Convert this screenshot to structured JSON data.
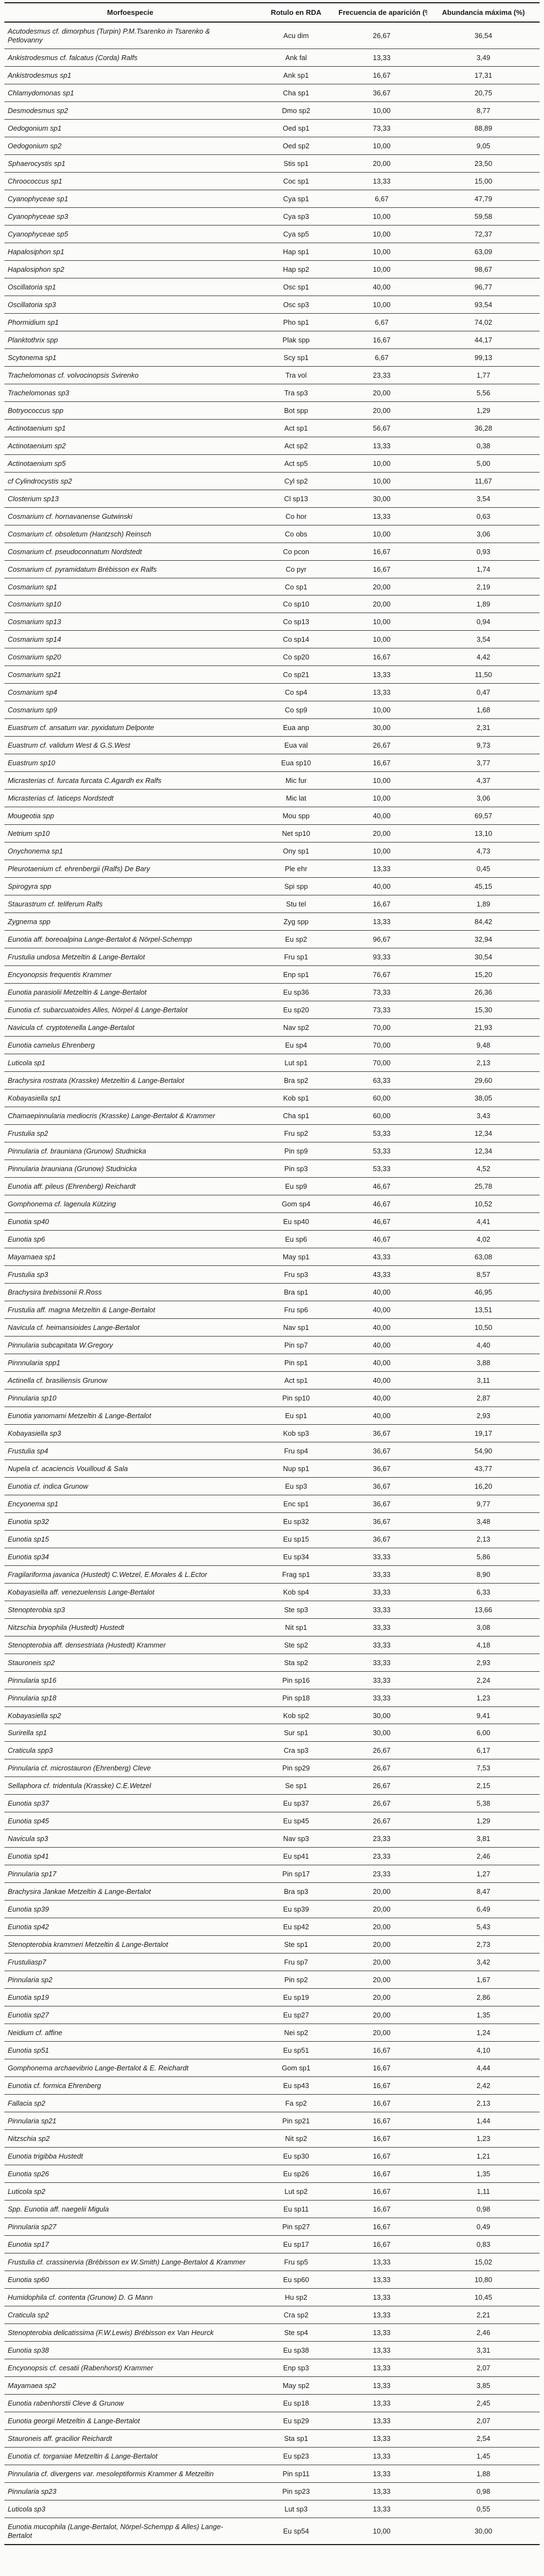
{
  "table": {
    "columns": [
      "Morfoespecie",
      "Rotulo en RDA",
      "Frecuencia de aparición (%)",
      "Abundancia máxima (%)"
    ],
    "rows": [
      [
        "Acutodesmus cf. dimorphus (Turpin) P.M.Tsarenko in Tsarenko & Petlovanny",
        "Acu dim",
        "26,67",
        "36,54"
      ],
      [
        "Ankistrodesmus cf. falcatus (Corda) Ralfs",
        "Ank fal",
        "13,33",
        "3,49"
      ],
      [
        "Ankistrodesmus sp1",
        "Ank sp1",
        "16,67",
        "17,31"
      ],
      [
        "Chlamydomonas sp1",
        "Cha sp1",
        "36,67",
        "20,75"
      ],
      [
        "Desmodesmus sp2",
        "Dmo sp2",
        "10,00",
        "8,77"
      ],
      [
        "Oedogonium sp1",
        "Oed sp1",
        "73,33",
        "88,89"
      ],
      [
        "Oedogonium sp2",
        "Oed sp2",
        "10,00",
        "9,05"
      ],
      [
        "Sphaerocystis sp1",
        "Stis sp1",
        "20,00",
        "23,50"
      ],
      [
        "Chroococcus sp1",
        "Coc sp1",
        "13,33",
        "15,00"
      ],
      [
        "Cyanophyceae sp1",
        "Cya sp1",
        "6,67",
        "47,79"
      ],
      [
        "Cyanophyceae sp3",
        "Cya sp3",
        "10,00",
        "59,58"
      ],
      [
        "Cyanophyceae sp5",
        "Cya sp5",
        "10,00",
        "72,37"
      ],
      [
        "Hapalosiphon sp1",
        "Hap sp1",
        "10,00",
        "63,09"
      ],
      [
        "Hapalosiphon sp2",
        "Hap sp2",
        "10,00",
        "98,67"
      ],
      [
        "Oscillatoria sp1",
        "Osc sp1",
        "40,00",
        "96,77"
      ],
      [
        "Oscillatoria sp3",
        "Osc sp3",
        "10,00",
        "93,54"
      ],
      [
        "Phormidium sp1",
        "Pho sp1",
        "6,67",
        "74,02"
      ],
      [
        "Planktothrix spp",
        "Plak spp",
        "16,67",
        "44,17"
      ],
      [
        "Scytonema sp1",
        "Scy sp1",
        "6,67",
        "99,13"
      ],
      [
        "Trachelomonas cf. volvocinopsis Svirenko",
        "Tra vol",
        "23,33",
        "1,77"
      ],
      [
        "Trachelomonas sp3",
        "Tra sp3",
        "20,00",
        "5,56"
      ],
      [
        "Botryococcus spp",
        "Bot spp",
        "20,00",
        "1,29"
      ],
      [
        "Actinotaenium sp1",
        "Act sp1",
        "56,67",
        "36,28"
      ],
      [
        "Actinotaenium sp2",
        "Act sp2",
        "13,33",
        "0,38"
      ],
      [
        "Actinotaenium sp5",
        "Act sp5",
        "10,00",
        "5,00"
      ],
      [
        "cf Cylindrocystis sp2",
        "Cyl sp2",
        "10,00",
        "11,67"
      ],
      [
        "Closterium sp13",
        "Cl sp13",
        "30,00",
        "3,54"
      ],
      [
        "Cosmarium cf. hornavanense Gutwinski",
        "Co hor",
        "13,33",
        "0,63"
      ],
      [
        "Cosmarium cf. obsoletum (Hantzsch) Reinsch",
        "Co obs",
        "10,00",
        "3,06"
      ],
      [
        "Cosmarium cf. pseudoconnatum Nordstedt",
        "Co pcon",
        "16,67",
        "0,93"
      ],
      [
        "Cosmarium cf. pyramidatum Brébisson ex Ralfs",
        "Co pyr",
        "16,67",
        "1,74"
      ],
      [
        "Cosmarium sp1",
        "Co sp1",
        "20,00",
        "2,19"
      ],
      [
        "Cosmarium sp10",
        "Co sp10",
        "20,00",
        "1,89"
      ],
      [
        "Cosmarium sp13",
        "Co sp13",
        "10,00",
        "0,94"
      ],
      [
        "Cosmarium sp14",
        "Co sp14",
        "10,00",
        "3,54"
      ],
      [
        "Cosmarium sp20",
        "Co sp20",
        "16,67",
        "4,42"
      ],
      [
        "Cosmarium sp21",
        "Co sp21",
        "13,33",
        "11,50"
      ],
      [
        "Cosmarium sp4",
        "Co sp4",
        "13,33",
        "0,47"
      ],
      [
        "Cosmarium sp9",
        "Co sp9",
        "10,00",
        "1,68"
      ],
      [
        "Euastrum cf. ansatum var. pyxidatum Delponte",
        "Eua anp",
        "30,00",
        "2,31"
      ],
      [
        "Euastrum cf. validum West & G.S.West",
        "Eua val",
        "26,67",
        "9,73"
      ],
      [
        "Euastrum sp10",
        "Eua sp10",
        "16,67",
        "3,77"
      ],
      [
        "Micrasterias cf. furcata furcata C.Agardh ex Ralfs",
        "Mic fur",
        "10,00",
        "4,37"
      ],
      [
        "Micrasterias cf. laticeps Nordstedt",
        "Mic lat",
        "10,00",
        "3,06"
      ],
      [
        "Mougeotia spp",
        "Mou spp",
        "40,00",
        "69,57"
      ],
      [
        "Netrium sp10",
        "Net sp10",
        "20,00",
        "13,10"
      ],
      [
        "Onychonema sp1",
        "Ony sp1",
        "10,00",
        "4,73"
      ],
      [
        "Pleurotaenium cf. ehrenbergii (Ralfs) De Bary",
        "Ple ehr",
        "13,33",
        "0,45"
      ],
      [
        "Spirogyra spp",
        "Spi spp",
        "40,00",
        "45,15"
      ],
      [
        "Staurastrum cf. teliferum Ralfs",
        "Stu tel",
        "16,67",
        "1,89"
      ],
      [
        "Zygnema spp",
        "Zyg spp",
        "13,33",
        "84,42"
      ],
      [
        "Eunotia aff. boreoalpina Lange-Bertalot & Nörpel-Schempp",
        "Eu sp2",
        "96,67",
        "32,94"
      ],
      [
        "Frustulia undosa Metzeltin & Lange-Bertalot",
        "Fru sp1",
        "93,33",
        "30,54"
      ],
      [
        "Encyonopsis frequentis Krammer",
        "Enp sp1",
        "76,67",
        "15,20"
      ],
      [
        "Eunotia parasiolii Metzeltin & Lange-Bertalot",
        "Eu sp36",
        "73,33",
        "26,36"
      ],
      [
        "Eunotia cf. subarcuatoides Alles, Nörpel & Lange-Bertalot",
        "Eu sp20",
        "73,33",
        "15,30"
      ],
      [
        "Navicula cf. cryptotenella Lange-Bertalot",
        "Nav sp2",
        "70,00",
        "21,93"
      ],
      [
        "Eunotia camelus Ehrenberg",
        "Eu sp4",
        "70,00",
        "9,48"
      ],
      [
        "Luticola sp1",
        "Lut sp1",
        "70,00",
        "2,13"
      ],
      [
        "Brachysira rostrata (Krasske) Metzeltin & Lange-Bertalot",
        "Bra sp2",
        "63,33",
        "29,60"
      ],
      [
        "Kobayasiella sp1",
        "Kob sp1",
        "60,00",
        "38,05"
      ],
      [
        "Chamaepinnularia mediocris (Krasske) Lange-Bertalot & Krammer",
        "Cha sp1",
        "60,00",
        "3,43"
      ],
      [
        "Frustulia sp2",
        "Fru sp2",
        "53,33",
        "12,34"
      ],
      [
        "Pinnularia cf. brauniana (Grunow) Studnicka",
        "Pin sp9",
        "53,33",
        "12,34"
      ],
      [
        "Pinnularia brauniana (Grunow) Studnicka",
        "Pin sp3",
        "53,33",
        "4,52"
      ],
      [
        "Eunotia aff. pileus (Ehrenberg) Reichardt",
        "Eu sp9",
        "46,67",
        "25,78"
      ],
      [
        "Gomphonema cf. lagenula Kützing",
        "Gom sp4",
        "46,67",
        "10,52"
      ],
      [
        "Eunotia sp40",
        "Eu sp40",
        "46,67",
        "4,41"
      ],
      [
        "Eunotia sp6",
        "Eu sp6",
        "46,67",
        "4,02"
      ],
      [
        "Mayamaea sp1",
        "May sp1",
        "43,33",
        "63,08"
      ],
      [
        "Frustulia sp3",
        "Fru sp3",
        "43,33",
        "8,57"
      ],
      [
        "Brachysira brebissonii  R.Ross",
        "Bra sp1",
        "40,00",
        "46,95"
      ],
      [
        "Frustulia aff. magna Metzeltin & Lange-Bertalot",
        "Fru sp6",
        "40,00",
        "13,51"
      ],
      [
        "Navicula cf. heimansioides Lange-Bertalot",
        "Nav sp1",
        "40,00",
        "10,50"
      ],
      [
        "Pinnularia subcapitata W.Gregory",
        "Pin sp7",
        "40,00",
        "4,40"
      ],
      [
        "Pinnnularia spp1",
        "Pin sp1",
        "40,00",
        "3,88"
      ],
      [
        "Actinella cf. brasiliensis Grunow",
        "Act sp1",
        "40,00",
        "3,11"
      ],
      [
        "Pinnularia sp10",
        "Pin sp10",
        "40,00",
        "2,87"
      ],
      [
        "Eunotia yanomami Metzeltin & Lange-Bertalot",
        "Eu sp1",
        "40,00",
        "2,93"
      ],
      [
        "Kobayasiella sp3",
        "Kob sp3",
        "36,67",
        "19,17"
      ],
      [
        "Frustulia sp4",
        "Fru sp4",
        "36,67",
        "54,90"
      ],
      [
        "Nupela cf. acaciencis Vouilloud & Sala",
        "Nup sp1",
        "36,67",
        "43,77"
      ],
      [
        "Eunotia cf. indica  Grunow",
        "Eu sp3",
        "36,67",
        "16,20"
      ],
      [
        "Encyonema sp1",
        "Enc sp1",
        "36,67",
        "9,77"
      ],
      [
        "Eunotia sp32",
        "Eu sp32",
        "36,67",
        "3,48"
      ],
      [
        "Eunotia sp15",
        "Eu sp15",
        "36,67",
        "2,13"
      ],
      [
        "Eunotia sp34",
        "Eu sp34",
        "33,33",
        "5,86"
      ],
      [
        "Fragilariforma javanica  (Hustedt) C.Wetzel, E.Morales & L.Ector",
        "Frag sp1",
        "33,33",
        "8,90"
      ],
      [
        "Kobayasiella aff. venezuelensis Lange-Bertalot",
        "Kob sp4",
        "33,33",
        "6,33"
      ],
      [
        "Stenopterobia sp3",
        "Ste sp3",
        "33,33",
        "13,66"
      ],
      [
        "Nitzschia bryophila (Hustedt) Hustedt",
        "Nit sp1",
        "33,33",
        "3,08"
      ],
      [
        "Stenopterobia aff. densestriata (Hustedt) Krammer",
        "Ste sp2",
        "33,33",
        "4,18"
      ],
      [
        "Stauroneis sp2",
        "Sta sp2",
        "33,33",
        "2,93"
      ],
      [
        "Pinnularia sp16",
        "Pin sp16",
        "33,33",
        "2,24"
      ],
      [
        "Pinnularia sp18",
        "Pin sp18",
        "33,33",
        "1,23"
      ],
      [
        "Kobayasiella sp2",
        "Kob sp2",
        "30,00",
        "9,41"
      ],
      [
        "Surirella sp1",
        "Sur sp1",
        "30,00",
        "6,00"
      ],
      [
        "Craticula spp3",
        "Cra sp3",
        "26,67",
        "6,17"
      ],
      [
        "Pinnularia cf. microstauron (Ehrenberg) Cleve",
        "Pin sp29",
        "26,67",
        "7,53"
      ],
      [
        "Sellaphora cf. tridentula (Krasske) C.E.Wetzel",
        "Se sp1",
        "26,67",
        "2,15"
      ],
      [
        "Eunotia sp37",
        "Eu sp37",
        "26,67",
        "5,38"
      ],
      [
        "Eunotia sp45",
        "Eu sp45",
        "26,67",
        "1,29"
      ],
      [
        "Navicula sp3",
        "Nav sp3",
        "23,33",
        "3,81"
      ],
      [
        "Eunotia sp41",
        "Eu sp41",
        "23,33",
        "2,46"
      ],
      [
        "Pinnularia sp17",
        "Pin sp17",
        "23,33",
        "1,27"
      ],
      [
        "Brachysira Jankae Metzeltin & Lange-Bertalot",
        "Bra sp3",
        "20,00",
        "8,47"
      ],
      [
        "Eunotia sp39",
        "Eu sp39",
        "20,00",
        "6,49"
      ],
      [
        "Eunotia sp42",
        "Eu sp42",
        "20,00",
        "5,43"
      ],
      [
        "Stenopterobia krammeri Metzeltin & Lange-Bertalot",
        "Ste sp1",
        "20,00",
        "2,73"
      ],
      [
        "Frustuliasp7",
        "Fru sp7",
        "20,00",
        "3,42"
      ],
      [
        "Pinnularia sp2",
        "Pin sp2",
        "20,00",
        "1,67"
      ],
      [
        "Eunotia sp19",
        "Eu sp19",
        "20,00",
        "2,86"
      ],
      [
        "Eunotia sp27",
        "Eu sp27",
        "20,00",
        "1,35"
      ],
      [
        "Neidium cf. affine",
        "Nei sp2",
        "20,00",
        "1,24"
      ],
      [
        "Eunotia sp51",
        "Eu sp51",
        "16,67",
        "4,10"
      ],
      [
        "Gomphonema archaevibrio Lange-Bertalot & E. Reichardt",
        "Gom sp1",
        "16,67",
        "4,44"
      ],
      [
        "Eunotia cf. formica Ehrenberg",
        "Eu sp43",
        "16,67",
        "2,42"
      ],
      [
        "Fallacia sp2",
        "Fa sp2",
        "16,67",
        "2,13"
      ],
      [
        "Pinnularia sp21",
        "Pin sp21",
        "16,67",
        "1,44"
      ],
      [
        "Nitzschia sp2",
        "Nit sp2",
        "16,67",
        "1,23"
      ],
      [
        "Eunotia trigibba Hustedt",
        "Eu sp30",
        "16,67",
        "1,21"
      ],
      [
        "Eunotia sp26",
        "Eu sp26",
        "16,67",
        "1,35"
      ],
      [
        "Luticola sp2",
        "Lut sp2",
        "16,67",
        "1,11"
      ],
      [
        "Spp. Eunotia aff. naegelii Migula",
        "Eu sp11",
        "16,67",
        "0,98"
      ],
      [
        "Pinnularia sp27",
        "Pin sp27",
        "16,67",
        "0,49"
      ],
      [
        "Eunotia sp17",
        "Eu sp17",
        "16,67",
        "0,83"
      ],
      [
        "Frustulia cf. crassinervia (Brébisson ex W.Smith) Lange-Bertalot & Krammer",
        "Fru sp5",
        "13,33",
        "15,02"
      ],
      [
        "Eunotia sp60",
        "Eu sp60",
        "13,33",
        "10,80"
      ],
      [
        "Humidophila cf. contenta (Grunow) D. G Mann",
        "Hu sp2",
        "13,33",
        "10,45"
      ],
      [
        "Craticula sp2",
        "Cra sp2",
        "13,33",
        "2,21"
      ],
      [
        "Stenopterobia delicatissima (F.W.Lewis) Brébisson ex Van Heurck",
        "Ste sp4",
        "13,33",
        "2,46"
      ],
      [
        "Eunotia sp38",
        "Eu sp38",
        "13,33",
        "3,31"
      ],
      [
        "Encyonopsis cf. cesatii (Rabenhorst) Krammer",
        "Enp sp3",
        "13,33",
        "2,07"
      ],
      [
        "Mayamaea sp2",
        "May sp2",
        "13,33",
        "3,85"
      ],
      [
        "Eunotia rabenhorstii Cleve & Grunow",
        "Eu sp18",
        "13,33",
        "2,45"
      ],
      [
        "Eunotia georgii Metzeltin & Lange-Bertalot",
        "Eu sp29",
        "13,33",
        "2,07"
      ],
      [
        "Stauroneis aff. gracilior Reichardt",
        "Sta sp1",
        "13,33",
        "2,54"
      ],
      [
        "Eunotia cf. torganiae Metzeltin & Lange-Bertalot",
        "Eu sp23",
        "13,33",
        "1,45"
      ],
      [
        "Pinnularia cf. divergens var. mesoleptiformis Krammer & Metzeltin",
        "Pin sp11",
        "13,33",
        "1,88"
      ],
      [
        "Pinnularia sp23",
        "Pin sp23",
        "13,33",
        "0,98"
      ],
      [
        "Luticola sp3",
        "Lut sp3",
        "13,33",
        "0,55"
      ],
      [
        "Eunotia mucophila (Lange-Bertalot, Nörpel-Schempp & Alles) Lange-Bertalot",
        "Eu sp54",
        "10,00",
        "30,00"
      ]
    ]
  }
}
